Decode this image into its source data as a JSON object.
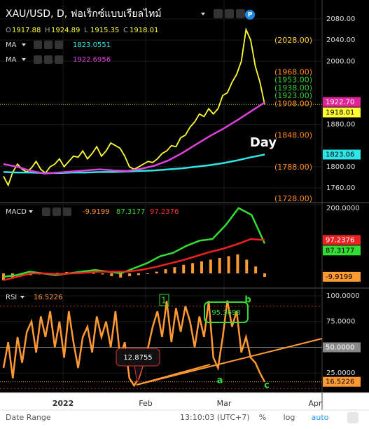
{
  "header": {
    "title": "XAU/USD, D, ฟอเร็กซ์แบบเรียลไทม์",
    "badge": "P",
    "ohlc": [
      {
        "label": "O",
        "value": "1917.88"
      },
      {
        "label": "H",
        "value": "1924.89"
      },
      {
        "label": "L",
        "value": "1915.35"
      },
      {
        "label": "C",
        "value": "1918.01"
      }
    ],
    "indicators": [
      {
        "name": "MA",
        "value": "1823.0551",
        "color": "#2ee6e6"
      },
      {
        "name": "MA",
        "value": "1922.6956",
        "color": "#e040e0"
      }
    ]
  },
  "price_pane": {
    "ylim": [
      1733.4,
      2115.9
    ],
    "yticks": [
      {
        "value": 1760,
        "label": "1760.00"
      },
      {
        "value": 1800,
        "label": "1800.00"
      },
      {
        "value": 1880,
        "label": "1880.00"
      },
      {
        "value": 2000,
        "label": "2000.00"
      },
      {
        "value": 2040,
        "label": "2040.00"
      },
      {
        "value": 2080,
        "label": "2080.00"
      }
    ],
    "series": [
      {
        "name": "close",
        "color": "#ffff33",
        "values": [
          1782,
          1765,
          1790,
          1805,
          1795,
          1790,
          1798,
          1810,
          1795,
          1788,
          1800,
          1805,
          1815,
          1800,
          1810,
          1820,
          1818,
          1830,
          1815,
          1825,
          1838,
          1820,
          1830,
          1845,
          1840,
          1835,
          1820,
          1800,
          1795,
          1800,
          1805,
          1810,
          1808,
          1815,
          1825,
          1830,
          1840,
          1838,
          1855,
          1860,
          1875,
          1885,
          1900,
          1895,
          1910,
          1900,
          1910,
          1935,
          1940,
          1960,
          1975,
          2000,
          2060,
          2040,
          1990,
          1960,
          1918
        ]
      },
      {
        "name": "ma-slow",
        "color": "#2ee6e6",
        "values": [
          1790,
          1789,
          1789,
          1788,
          1788,
          1789,
          1789,
          1790,
          1790,
          1791,
          1792,
          1793,
          1795,
          1797,
          1800,
          1803,
          1807,
          1812,
          1818,
          1823
        ]
      },
      {
        "name": "ma-fast",
        "color": "#e040e0",
        "values": [
          1805,
          1800,
          1792,
          1787,
          1789,
          1791,
          1793,
          1795,
          1793,
          1792,
          1796,
          1802,
          1812,
          1826,
          1842,
          1858,
          1872,
          1888,
          1905,
          1922
        ]
      }
    ],
    "tags": [
      {
        "value": 1922.7,
        "label": "1922.70",
        "bg": "#e0249a",
        "fg": "#ffffff"
      },
      {
        "value": 1918.01,
        "label": "1918.01",
        "bg": "#ffff33",
        "fg": "#000000",
        "line": true
      },
      {
        "value": 1823.06,
        "label": "1823.06",
        "bg": "#2ee6e6",
        "fg": "#000000"
      }
    ],
    "levels": [
      {
        "value": 2028,
        "label": "(2028.00)",
        "color": "#ffcc33"
      },
      {
        "value": 1968,
        "label": "(1968.00)",
        "color": "#ff8c1a"
      },
      {
        "value": 1953,
        "label": "(1953.00)",
        "color": "#33cc33"
      },
      {
        "value": 1938,
        "label": "(1938.00)",
        "color": "#33cc33"
      },
      {
        "value": 1923,
        "label": "(1923.00)",
        "color": "#33cc33"
      },
      {
        "value": 1908,
        "label": "(1908.00)",
        "color": "#ff8c1a"
      },
      {
        "value": 1848,
        "label": "(1848.00)",
        "color": "#ff8c1a"
      },
      {
        "value": 1788,
        "label": "(1788.00)",
        "color": "#ff8c1a"
      },
      {
        "value": 1728,
        "label": "(1728.00)",
        "color": "#ff8c1a"
      }
    ],
    "annotation": "Day"
  },
  "macd_pane": {
    "title": "MACD",
    "printed": [
      {
        "text": "-9.9199",
        "color": "#ff9933"
      },
      {
        "text": "87.3177",
        "color": "#33dd33"
      },
      {
        "text": "97.2376",
        "color": "#ff3333"
      }
    ],
    "ylim": [
      -40.8,
      204
    ],
    "yticks": [
      {
        "value": 200,
        "label": "200.0000"
      }
    ],
    "series": [
      {
        "name": "macd",
        "color": "#33dd33",
        "values": [
          -10,
          -5,
          5,
          0,
          -5,
          0,
          5,
          10,
          5,
          0,
          15,
          30,
          50,
          60,
          80,
          95,
          100,
          140,
          190,
          170,
          87
        ]
      },
      {
        "name": "signal",
        "color": "#ee2222",
        "values": [
          -20,
          -10,
          0,
          0,
          -2,
          0,
          2,
          5,
          5,
          5,
          10,
          18,
          28,
          38,
          50,
          62,
          72,
          85,
          100,
          97
        ]
      }
    ],
    "histogram": {
      "color": "#ff9933",
      "values": [
        -20,
        -15,
        -8,
        -5,
        -3,
        0,
        2,
        4,
        3,
        2,
        1,
        -3,
        -8,
        -12,
        -8,
        -5,
        -2,
        5,
        12,
        18,
        25,
        30,
        35,
        40,
        45,
        50,
        55,
        40,
        20,
        -9.9199
      ]
    },
    "tags": [
      {
        "value": 97.2376,
        "label": "97.2376",
        "bg": "#ee2222",
        "fg": "#ffffff"
      },
      {
        "value": 87.3177,
        "label": "87.3177",
        "bg": "#33dd33",
        "fg": "#000000"
      },
      {
        "value": -9.9199,
        "label": "-9.9199",
        "bg": "#ff9933",
        "fg": "#000000"
      }
    ]
  },
  "rsi_pane": {
    "title": "RSI",
    "printed": [
      {
        "text": "16.5226",
        "color": "#ff9933"
      }
    ],
    "ylim": [
      6.1,
      106.8
    ],
    "yticks": [
      {
        "value": 25,
        "label": "25.0000"
      },
      {
        "value": 75,
        "label": "75.0000"
      },
      {
        "value": 100,
        "label": "100.0000"
      }
    ],
    "bands": [
      90,
      10
    ],
    "series": [
      {
        "name": "rsi",
        "color": "#ff9933",
        "values": [
          30,
          55,
          20,
          60,
          35,
          65,
          75,
          45,
          80,
          60,
          85,
          50,
          75,
          40,
          85,
          55,
          30,
          60,
          70,
          45,
          80,
          60,
          75,
          50,
          85,
          40,
          55,
          20,
          12.8755,
          20,
          35,
          50,
          70,
          85,
          60,
          95,
          55,
          88,
          65,
          90,
          75,
          50,
          80,
          60,
          95,
          40,
          30,
          60,
          95.3698,
          70,
          85,
          45,
          60,
          40,
          35,
          25,
          16.5226
        ]
      }
    ],
    "tags": [
      {
        "value": 50,
        "label": "50.0000",
        "bg": "#8a8a8a",
        "fg": "#ffffff"
      },
      {
        "value": 16.5226,
        "label": "16.5226",
        "bg": "#ff9933",
        "fg": "#000000",
        "line": true
      }
    ],
    "callouts": [
      "12.8755",
      "95.3698"
    ],
    "wave_labels": [
      "1",
      "a",
      "b",
      "c"
    ]
  },
  "time_axis": {
    "labels": [
      "2022",
      "Feb",
      "Mar",
      "Apr"
    ]
  },
  "toolbar": {
    "date_range": "Date Range",
    "clock": "13:10:03 (UTC+7)",
    "percent": "%",
    "log": "log",
    "auto": "auto"
  }
}
